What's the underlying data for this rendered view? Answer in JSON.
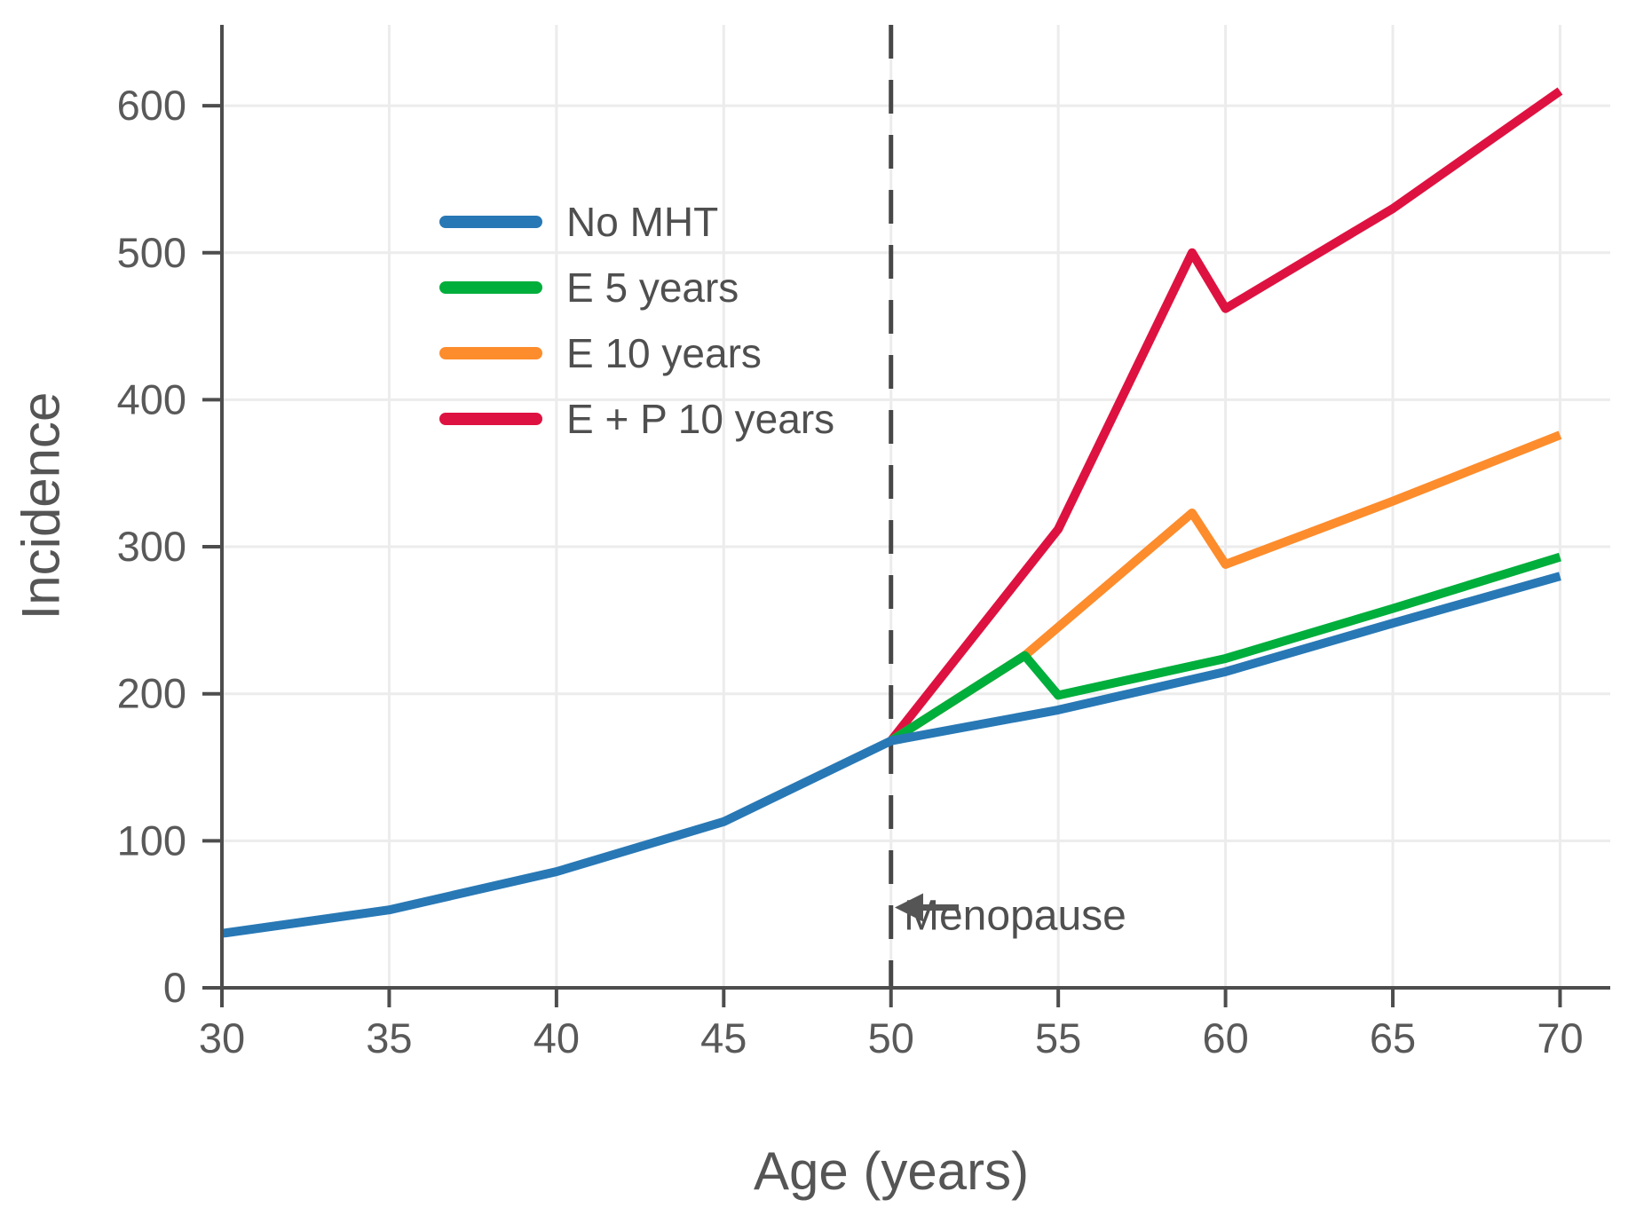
{
  "chart_data": {
    "type": "line",
    "title": "",
    "xlabel": "Age (years)",
    "ylabel": "Incidence",
    "x_ticks": [
      30,
      35,
      40,
      45,
      50,
      55,
      60,
      65,
      70
    ],
    "y_ticks": [
      0,
      100,
      200,
      300,
      400,
      500,
      600
    ],
    "xlim": [
      30,
      71.5
    ],
    "ylim": [
      0,
      655
    ],
    "grid": true,
    "legend_position": "upper-left-inside",
    "vline": {
      "x": 50,
      "style": "dashed",
      "label": "Menopause"
    },
    "series": [
      {
        "name": "No MHT",
        "color": "#2878b5",
        "x": [
          30,
          35,
          40,
          45,
          50,
          55,
          60,
          65,
          70
        ],
        "y": [
          37,
          53,
          79,
          113,
          168,
          189,
          215,
          248,
          280
        ]
      },
      {
        "name": "E 5 years",
        "color": "#00ae3c",
        "x": [
          50,
          54,
          55,
          60,
          65,
          70
        ],
        "y": [
          168,
          226,
          199,
          224,
          258,
          293
        ]
      },
      {
        "name": "E 10 years",
        "color": "#fd8c2c",
        "x": [
          50,
          54,
          59,
          60,
          65,
          70
        ],
        "y": [
          168,
          226,
          323,
          288,
          331,
          376
        ]
      },
      {
        "name": "E + P 10 years",
        "color": "#de1240",
        "x": [
          50,
          55,
          59,
          60,
          65,
          70
        ],
        "y": [
          168,
          312,
          500,
          462,
          530,
          610
        ]
      }
    ]
  },
  "style": {
    "background": "#ffffff",
    "grid_color": "#ececec",
    "axis_color": "#4d4d4d",
    "text_color": "#595959",
    "dash_color": "#474747",
    "arrow_color": "#555555"
  }
}
